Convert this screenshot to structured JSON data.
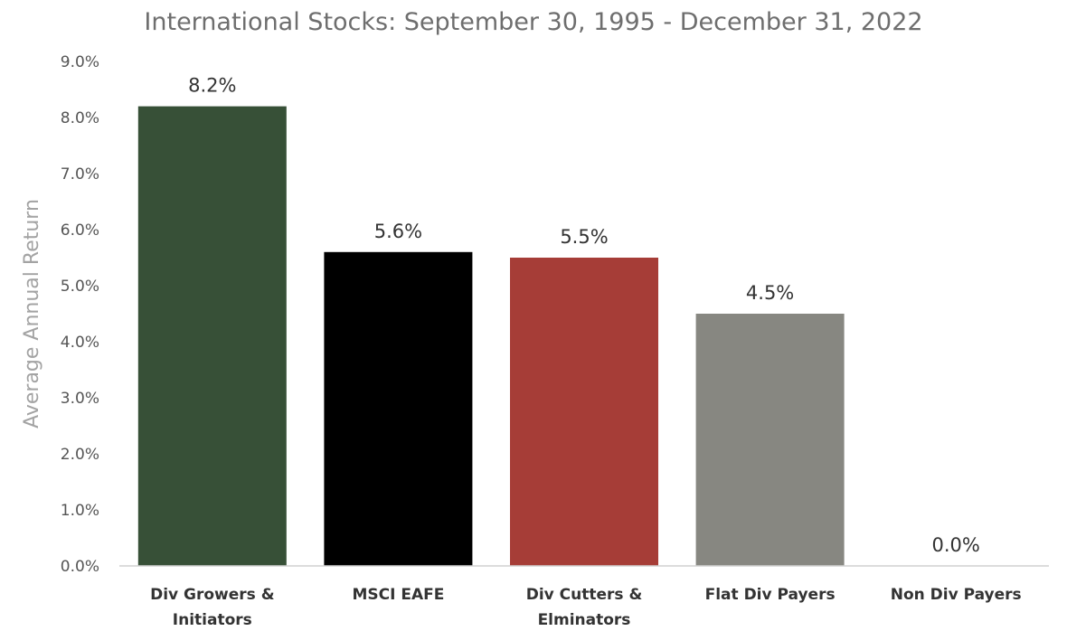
{
  "chart_data": {
    "type": "bar",
    "title": "International Stocks: September 30, 1995 - December 31, 2022",
    "xlabel": "",
    "ylabel": "Average Annual Return",
    "ylim": [
      0,
      9
    ],
    "yticks": [
      "0.0%",
      "1.0%",
      "2.0%",
      "3.0%",
      "4.0%",
      "5.0%",
      "6.0%",
      "7.0%",
      "8.0%",
      "9.0%"
    ],
    "categories": [
      [
        "Div Growers &",
        "Initiators"
      ],
      [
        "MSCI EAFE"
      ],
      [
        "Div Cutters &",
        "Elminators"
      ],
      [
        "Flat Div Payers"
      ],
      [
        "Non Div Payers"
      ]
    ],
    "values": [
      8.2,
      5.6,
      5.5,
      4.5,
      0.0
    ],
    "data_labels": [
      "8.2%",
      "5.6%",
      "5.5%",
      "4.5%",
      "0.0%"
    ],
    "colors": [
      "#375037",
      "#000000",
      "#a63d37",
      "#878781",
      "#cccccc"
    ],
    "grid": false,
    "legend": "none"
  }
}
